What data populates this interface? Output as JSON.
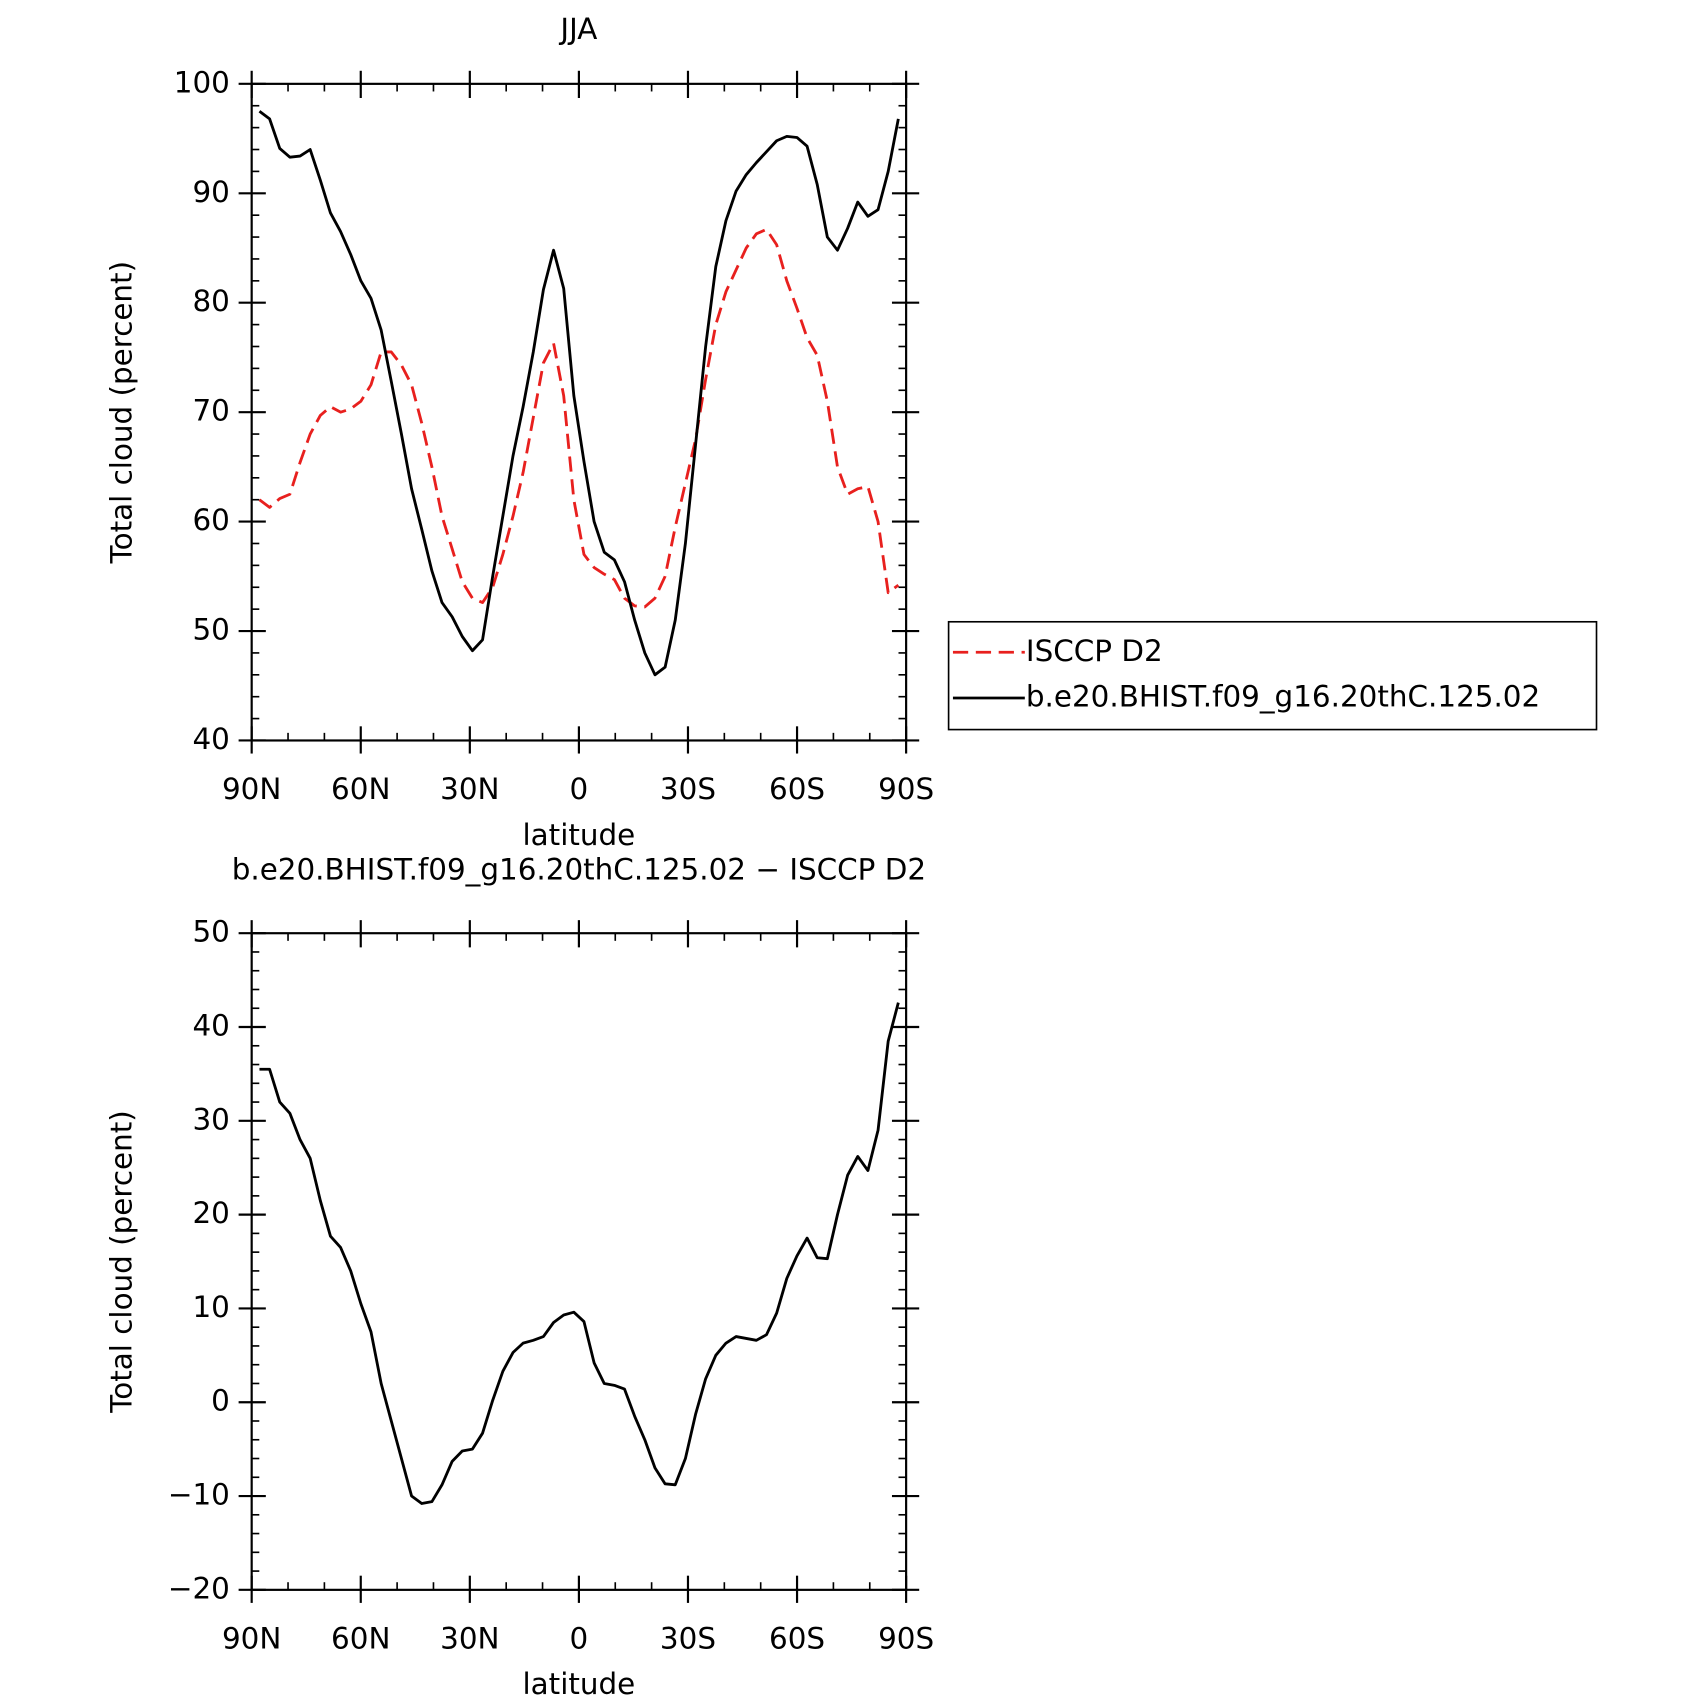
{
  "chart_data": [
    {
      "type": "line",
      "title": "JJA",
      "xlabel": "latitude",
      "ylabel": "Total cloud (percent)",
      "x": [
        87.86,
        85.07,
        82.28,
        79.49,
        76.7,
        73.91,
        71.12,
        68.33,
        65.55,
        62.76,
        59.97,
        57.18,
        54.39,
        51.6,
        48.81,
        46.02,
        43.23,
        40.44,
        37.65,
        34.86,
        32.08,
        29.29,
        26.5,
        23.71,
        20.92,
        18.13,
        15.34,
        12.55,
        9.76,
        6.97,
        4.18,
        1.39,
        -1.39,
        -4.18,
        -6.97,
        -9.76,
        -12.55,
        -15.34,
        -18.13,
        -20.92,
        -23.71,
        -26.5,
        -29.29,
        -32.08,
        -34.86,
        -37.65,
        -40.44,
        -43.23,
        -46.02,
        -48.81,
        -51.6,
        -54.39,
        -57.18,
        -59.97,
        -62.76,
        -65.55,
        -68.33,
        -71.12,
        -73.91,
        -76.7,
        -79.49,
        -82.28,
        -85.07,
        -87.86
      ],
      "series": [
        {
          "name": "ISCCP D2",
          "color": "#e8201e",
          "linestyle": "dashed",
          "values": [
            62.0,
            61.3,
            62.1,
            62.5,
            65.4,
            68.0,
            69.7,
            70.5,
            70.0,
            70.3,
            71.0,
            72.5,
            75.5,
            75.5,
            74.3,
            72.5,
            69.0,
            65.0,
            60.5,
            57.5,
            54.5,
            53.0,
            52.6,
            54.0,
            57.0,
            60.5,
            64.5,
            69.5,
            74.5,
            76.3,
            71.5,
            62.0,
            57.0,
            55.8,
            55.2,
            54.7,
            53.0,
            52.3,
            52.2,
            53.0,
            55.0,
            59.5,
            63.5,
            67.5,
            73.0,
            78.0,
            81.0,
            83.0,
            85.0,
            86.3,
            86.7,
            85.3,
            82.0,
            79.5,
            76.8,
            75.2,
            71.0,
            65.0,
            62.5,
            63.0,
            63.2,
            60.0,
            53.5,
            54.2
          ]
        },
        {
          "name": "b.e20.BHIST.f09_g16.20thC.125.02",
          "color": "#000000",
          "linestyle": "solid",
          "values": [
            97.5,
            96.8,
            94.1,
            93.3,
            93.4,
            94.0,
            91.2,
            88.2,
            86.5,
            84.4,
            82.0,
            80.4,
            77.5,
            72.8,
            68.0,
            63.0,
            59.3,
            55.5,
            52.6,
            51.3,
            49.5,
            48.2,
            49.2,
            55.0,
            60.5,
            66.0,
            70.5,
            75.5,
            81.2,
            84.8,
            81.3,
            71.5,
            65.5,
            60.0,
            57.2,
            56.5,
            54.5,
            51.0,
            48.0,
            46.0,
            46.7,
            51.0,
            58.0,
            67.0,
            76.0,
            83.3,
            87.5,
            90.2,
            91.7,
            92.8,
            93.8,
            94.8,
            95.2,
            95.1,
            94.3,
            90.8,
            86.0,
            84.8,
            86.8,
            89.2,
            87.9,
            88.5,
            92.0,
            96.8
          ]
        }
      ],
      "xlim": [
        90,
        -90
      ],
      "xticks": [
        {
          "value": 90,
          "label": "90N"
        },
        {
          "value": 60,
          "label": "60N"
        },
        {
          "value": 30,
          "label": "30N"
        },
        0,
        {
          "value": -30,
          "label": "30S"
        },
        {
          "value": -60,
          "label": "60S"
        },
        {
          "value": -90,
          "label": "90S"
        }
      ],
      "ylim": [
        40,
        100
      ],
      "yticks": [
        40,
        50,
        60,
        70,
        80,
        90,
        100
      ],
      "legend": "right"
    },
    {
      "type": "line",
      "title": "b.e20.BHIST.f09_g16.20thC.125.02 − ISCCP D2",
      "xlabel": "latitude",
      "ylabel": "Total cloud (percent)",
      "x": [
        87.86,
        85.07,
        82.28,
        79.49,
        76.7,
        73.91,
        71.12,
        68.33,
        65.55,
        62.76,
        59.97,
        57.18,
        54.39,
        51.6,
        48.81,
        46.02,
        43.23,
        40.44,
        37.65,
        34.86,
        32.08,
        29.29,
        26.5,
        23.71,
        20.92,
        18.13,
        15.34,
        12.55,
        9.76,
        6.97,
        4.18,
        1.39,
        -1.39,
        -4.18,
        -6.97,
        -9.76,
        -12.55,
        -15.34,
        -18.13,
        -20.92,
        -23.71,
        -26.5,
        -29.29,
        -32.08,
        -34.86,
        -37.65,
        -40.44,
        -43.23,
        -46.02,
        -48.81,
        -51.6,
        -54.39,
        -57.18,
        -59.97,
        -62.76,
        -65.55,
        -68.33,
        -71.12,
        -73.91,
        -76.7,
        -79.49,
        -82.28,
        -85.07,
        -87.86
      ],
      "values": [
        35.5,
        35.5,
        32.0,
        30.8,
        28.0,
        26.0,
        21.5,
        17.7,
        16.5,
        14.0,
        10.5,
        7.5,
        2.0,
        -2.0,
        -6.0,
        -10.0,
        -10.8,
        -10.6,
        -8.8,
        -6.3,
        -5.2,
        -5.0,
        -3.3,
        0.2,
        3.3,
        5.3,
        6.3,
        6.6,
        7.0,
        8.5,
        9.3,
        9.6,
        8.6,
        4.2,
        2.0,
        1.8,
        1.4,
        -1.5,
        -4.0,
        -7.0,
        -8.7,
        -8.8,
        -6.0,
        -1.3,
        2.5,
        5.0,
        6.3,
        7.0,
        6.8,
        6.6,
        7.2,
        9.5,
        13.2,
        15.6,
        17.5,
        15.4,
        15.3,
        20.0,
        24.2,
        26.2,
        24.7,
        29.0,
        38.5,
        42.6
      ],
      "color": "#000000",
      "xlim": [
        90,
        -90
      ],
      "xticks": [
        {
          "value": 90,
          "label": "90N"
        },
        {
          "value": 60,
          "label": "60N"
        },
        {
          "value": 30,
          "label": "30N"
        },
        0,
        {
          "value": -30,
          "label": "30S"
        },
        {
          "value": -60,
          "label": "60S"
        },
        {
          "value": -90,
          "label": "90S"
        }
      ],
      "ylim": [
        -20,
        50
      ],
      "yticks": [
        {
          "value": -20,
          "label": "−20"
        },
        {
          "value": -10,
          "label": "−10"
        },
        0,
        10,
        20,
        30,
        40,
        50
      ]
    }
  ]
}
